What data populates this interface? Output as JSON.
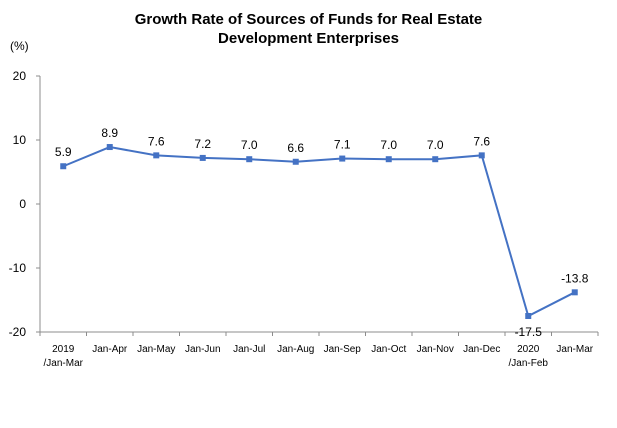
{
  "chart_data": {
    "type": "line",
    "title_line1": "Growth Rate of Sources of Funds for Real Estate",
    "title_line2": "Development Enterprises",
    "unit_label": "(%)",
    "ylim": [
      -20,
      20
    ],
    "yticks": [
      "20",
      "10",
      "0",
      "-10",
      "-20"
    ],
    "grid": false,
    "categories": [
      {
        "line1": "2019",
        "line2": "/Jan-Mar"
      },
      {
        "line1": "Jan-Apr",
        "line2": ""
      },
      {
        "line1": "Jan-May",
        "line2": ""
      },
      {
        "line1": "Jan-Jun",
        "line2": ""
      },
      {
        "line1": "Jan-Jul",
        "line2": ""
      },
      {
        "line1": "Jan-Aug",
        "line2": ""
      },
      {
        "line1": "Jan-Sep",
        "line2": ""
      },
      {
        "line1": "Jan-Oct",
        "line2": ""
      },
      {
        "line1": "Jan-Nov",
        "line2": ""
      },
      {
        "line1": "Jan-Dec",
        "line2": ""
      },
      {
        "line1": "2020",
        "line2": "/Jan-Feb"
      },
      {
        "line1": "Jan-Mar",
        "line2": ""
      }
    ],
    "values": [
      5.9,
      8.9,
      7.6,
      7.2,
      7.0,
      6.6,
      7.1,
      7.0,
      7.0,
      7.6,
      -17.5,
      -13.8
    ],
    "data_labels": [
      "5.9",
      "8.9",
      "7.6",
      "7.2",
      "7.0",
      "6.6",
      "7.1",
      "7.0",
      "7.0",
      "7.6",
      "-17.5",
      "-13.8"
    ],
    "line_color": "#4472C4"
  }
}
